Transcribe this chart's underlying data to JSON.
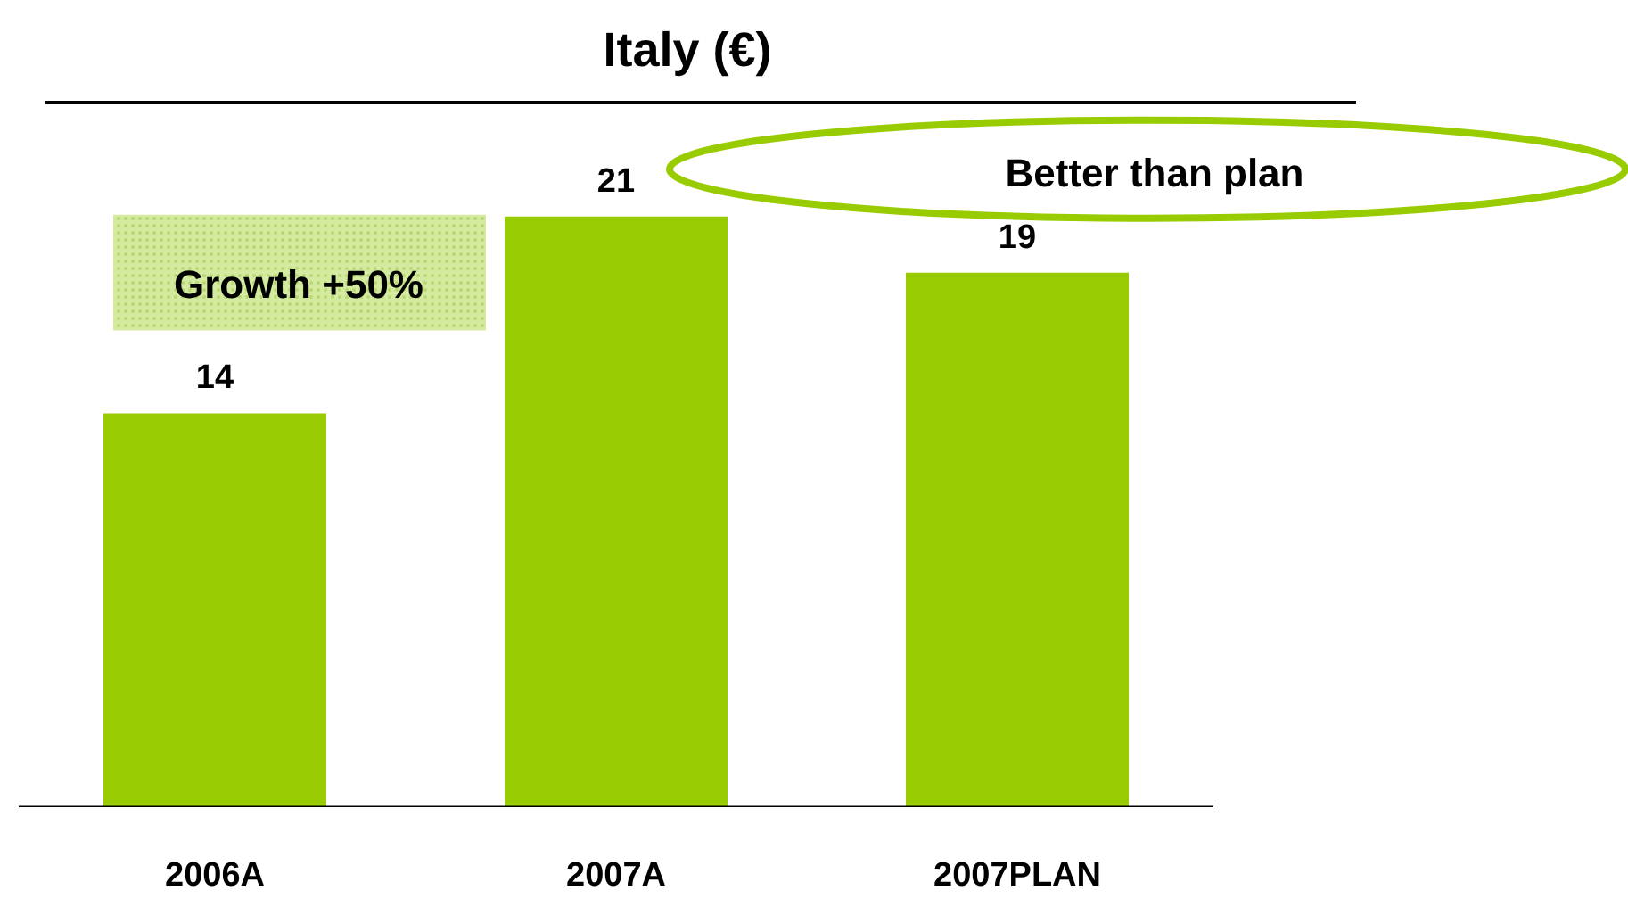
{
  "chart_data": {
    "type": "bar",
    "title": "Italy (€)",
    "categories": [
      "2006A",
      "2007A",
      "2007PLAN"
    ],
    "values": [
      14,
      21,
      19
    ],
    "color": "#99cc00",
    "data_labels": true,
    "annotations": [
      "Growth +50%",
      "Better than plan"
    ],
    "grid": false
  }
}
